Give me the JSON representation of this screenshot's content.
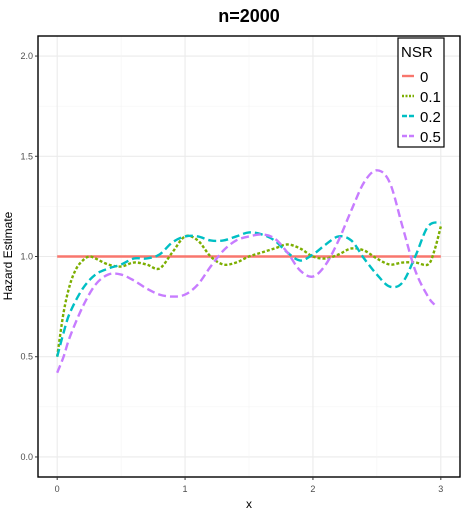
{
  "chart_data": {
    "type": "line",
    "title": "n=2000",
    "xlabel": "x",
    "ylabel": "Hazard Estimate",
    "xlim": [
      -0.15,
      3.15
    ],
    "ylim": [
      -0.1,
      2.1
    ],
    "x_ticks": [
      0,
      1,
      2,
      3
    ],
    "x_tick_labels": [
      "0",
      "1",
      "2",
      "3"
    ],
    "y_ticks": [
      0.0,
      0.5,
      1.0,
      1.5,
      2.0
    ],
    "y_tick_labels": [
      "0.0",
      "0.5",
      "1.0",
      "1.5",
      "2.0"
    ],
    "grid": true,
    "legend": {
      "title": "NSR",
      "placement": "top-right"
    },
    "series": [
      {
        "name": "0",
        "color": "#F8766D",
        "dash": "solid",
        "x": [
          0,
          3
        ],
        "y": [
          1.0,
          1.0
        ]
      },
      {
        "name": "0.1",
        "color": "#7CAE00",
        "dash": "dotted",
        "x": [
          0,
          0.05,
          0.1,
          0.15,
          0.2,
          0.25,
          0.3,
          0.4,
          0.5,
          0.6,
          0.7,
          0.8,
          0.9,
          1.0,
          1.1,
          1.2,
          1.3,
          1.4,
          1.5,
          1.6,
          1.7,
          1.8,
          1.9,
          2.0,
          2.1,
          2.2,
          2.3,
          2.4,
          2.5,
          2.6,
          2.7,
          2.8,
          2.9,
          2.95,
          3.0
        ],
        "y": [
          0.5,
          0.72,
          0.86,
          0.94,
          0.98,
          1.0,
          0.99,
          0.96,
          0.95,
          0.97,
          0.96,
          0.94,
          1.02,
          1.1,
          1.08,
          1.0,
          0.96,
          0.97,
          1.0,
          1.02,
          1.04,
          1.06,
          1.04,
          1.0,
          0.99,
          1.01,
          1.04,
          1.03,
          0.99,
          0.96,
          0.97,
          0.97,
          0.96,
          1.03,
          1.15
        ]
      },
      {
        "name": "0.2",
        "color": "#00BFC4",
        "dash": "dashed",
        "x": [
          0,
          0.05,
          0.1,
          0.2,
          0.3,
          0.4,
          0.5,
          0.6,
          0.7,
          0.8,
          0.9,
          1.0,
          1.1,
          1.2,
          1.3,
          1.4,
          1.5,
          1.6,
          1.7,
          1.8,
          1.9,
          2.0,
          2.1,
          2.2,
          2.3,
          2.4,
          2.5,
          2.6,
          2.7,
          2.8,
          2.9,
          3.0
        ],
        "y": [
          0.5,
          0.62,
          0.72,
          0.84,
          0.91,
          0.94,
          0.96,
          0.99,
          0.99,
          1.01,
          1.07,
          1.1,
          1.1,
          1.08,
          1.08,
          1.1,
          1.12,
          1.11,
          1.08,
          1.02,
          0.98,
          1.01,
          1.06,
          1.1,
          1.08,
          0.99,
          0.91,
          0.85,
          0.87,
          1.0,
          1.15,
          1.17
        ]
      },
      {
        "name": "0.5",
        "color": "#C77CFF",
        "dash": "dashed",
        "x": [
          0,
          0.05,
          0.1,
          0.2,
          0.3,
          0.4,
          0.5,
          0.6,
          0.7,
          0.8,
          0.9,
          1.0,
          1.1,
          1.2,
          1.3,
          1.4,
          1.5,
          1.6,
          1.7,
          1.8,
          1.9,
          2.0,
          2.1,
          2.2,
          2.3,
          2.4,
          2.5,
          2.6,
          2.7,
          2.8,
          2.9,
          2.95
        ],
        "y": [
          0.42,
          0.5,
          0.6,
          0.75,
          0.86,
          0.91,
          0.91,
          0.88,
          0.84,
          0.81,
          0.8,
          0.81,
          0.86,
          0.95,
          1.03,
          1.08,
          1.1,
          1.11,
          1.09,
          1.02,
          0.93,
          0.9,
          0.96,
          1.08,
          1.23,
          1.37,
          1.43,
          1.37,
          1.15,
          0.93,
          0.8,
          0.76
        ]
      }
    ]
  }
}
